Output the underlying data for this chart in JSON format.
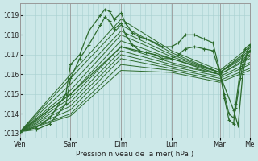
{
  "background_color": "#cce8e8",
  "grid_color": "#a8d0d0",
  "line_color": "#2d6b2d",
  "xlabel": "Pression niveau de la mer( hPa )",
  "ylim": [
    1012.8,
    1019.6
  ],
  "yticks": [
    1013,
    1014,
    1015,
    1016,
    1017,
    1018,
    1019
  ],
  "x_day_labels": [
    "Ven",
    "Sam",
    "Dim",
    "Lun",
    "Mar",
    "Me"
  ],
  "x_day_positions": [
    0,
    0.22,
    0.44,
    0.66,
    0.87,
    1.0
  ],
  "series": [
    {
      "points": [
        [
          0,
          1013.1
        ],
        [
          0.07,
          1013.3
        ],
        [
          0.13,
          1013.8
        ],
        [
          0.2,
          1015.0
        ],
        [
          0.22,
          1016.5
        ],
        [
          0.26,
          1017.0
        ],
        [
          0.3,
          1018.2
        ],
        [
          0.35,
          1019.0
        ],
        [
          0.37,
          1019.3
        ],
        [
          0.39,
          1019.2
        ],
        [
          0.41,
          1018.8
        ],
        [
          0.44,
          1019.1
        ],
        [
          0.46,
          1018.6
        ],
        [
          0.49,
          1018.1
        ],
        [
          0.52,
          1017.9
        ],
        [
          0.55,
          1017.8
        ],
        [
          0.59,
          1017.6
        ],
        [
          0.62,
          1017.4
        ],
        [
          0.66,
          1017.4
        ],
        [
          0.69,
          1017.6
        ],
        [
          0.72,
          1018.0
        ],
        [
          0.76,
          1018.0
        ],
        [
          0.8,
          1017.8
        ],
        [
          0.84,
          1017.6
        ],
        [
          0.87,
          1016.2
        ],
        [
          0.89,
          1014.8
        ],
        [
          0.91,
          1013.7
        ],
        [
          0.93,
          1013.5
        ],
        [
          0.94,
          1014.5
        ],
        [
          0.96,
          1016.3
        ],
        [
          0.97,
          1017.0
        ],
        [
          0.98,
          1017.3
        ],
        [
          0.99,
          1017.4
        ],
        [
          1.0,
          1017.5
        ]
      ],
      "marker": true
    },
    {
      "points": [
        [
          0,
          1013.1
        ],
        [
          0.07,
          1013.2
        ],
        [
          0.13,
          1013.5
        ],
        [
          0.2,
          1014.5
        ],
        [
          0.22,
          1015.8
        ],
        [
          0.26,
          1016.8
        ],
        [
          0.3,
          1017.5
        ],
        [
          0.35,
          1018.5
        ],
        [
          0.37,
          1018.9
        ],
        [
          0.39,
          1018.7
        ],
        [
          0.41,
          1018.3
        ],
        [
          0.44,
          1018.6
        ],
        [
          0.46,
          1018.0
        ],
        [
          0.49,
          1017.5
        ],
        [
          0.52,
          1017.2
        ],
        [
          0.55,
          1017.1
        ],
        [
          0.59,
          1017.0
        ],
        [
          0.62,
          1016.8
        ],
        [
          0.66,
          1016.8
        ],
        [
          0.69,
          1017.0
        ],
        [
          0.72,
          1017.3
        ],
        [
          0.76,
          1017.4
        ],
        [
          0.8,
          1017.3
        ],
        [
          0.84,
          1017.2
        ],
        [
          0.87,
          1016.1
        ],
        [
          0.89,
          1015.0
        ],
        [
          0.91,
          1014.0
        ],
        [
          0.93,
          1013.8
        ],
        [
          0.94,
          1014.3
        ],
        [
          0.96,
          1015.8
        ],
        [
          0.97,
          1016.5
        ],
        [
          0.98,
          1016.8
        ],
        [
          0.99,
          1017.0
        ],
        [
          1.0,
          1017.2
        ]
      ],
      "marker": true
    },
    {
      "points": [
        [
          0,
          1013.1
        ],
        [
          0.22,
          1016.0
        ],
        [
          0.44,
          1018.8
        ],
        [
          0.66,
          1017.2
        ],
        [
          0.87,
          1016.2
        ],
        [
          1.0,
          1017.4
        ]
      ],
      "marker": false
    },
    {
      "points": [
        [
          0,
          1013.1
        ],
        [
          0.22,
          1015.8
        ],
        [
          0.44,
          1018.5
        ],
        [
          0.66,
          1017.1
        ],
        [
          0.87,
          1016.1
        ],
        [
          1.0,
          1017.3
        ]
      ],
      "marker": false
    },
    {
      "points": [
        [
          0,
          1013.1
        ],
        [
          0.22,
          1015.5
        ],
        [
          0.44,
          1018.2
        ],
        [
          0.66,
          1017.0
        ],
        [
          0.87,
          1016.1
        ],
        [
          1.0,
          1017.2
        ]
      ],
      "marker": false
    },
    {
      "points": [
        [
          0,
          1013.1
        ],
        [
          0.22,
          1015.2
        ],
        [
          0.44,
          1018.0
        ],
        [
          0.66,
          1016.9
        ],
        [
          0.87,
          1016.1
        ],
        [
          1.0,
          1017.1
        ]
      ],
      "marker": false
    },
    {
      "points": [
        [
          0,
          1013.1
        ],
        [
          0.22,
          1015.0
        ],
        [
          0.44,
          1017.7
        ],
        [
          0.66,
          1016.8
        ],
        [
          0.87,
          1016.1
        ],
        [
          1.0,
          1017.0
        ]
      ],
      "marker": false
    },
    {
      "points": [
        [
          0,
          1013.1
        ],
        [
          0.22,
          1014.8
        ],
        [
          0.44,
          1017.4
        ],
        [
          0.66,
          1016.6
        ],
        [
          0.87,
          1016.0
        ],
        [
          1.0,
          1016.9
        ]
      ],
      "marker": false
    },
    {
      "points": [
        [
          0,
          1013.1
        ],
        [
          0.22,
          1014.6
        ],
        [
          0.44,
          1017.2
        ],
        [
          0.66,
          1016.5
        ],
        [
          0.87,
          1016.0
        ],
        [
          1.0,
          1016.8
        ]
      ],
      "marker": false
    },
    {
      "points": [
        [
          0,
          1013.1
        ],
        [
          0.22,
          1014.4
        ],
        [
          0.44,
          1017.0
        ],
        [
          0.66,
          1016.4
        ],
        [
          0.87,
          1015.9
        ],
        [
          1.0,
          1016.6
        ]
      ],
      "marker": false
    },
    {
      "points": [
        [
          0,
          1013.1
        ],
        [
          0.22,
          1014.2
        ],
        [
          0.44,
          1016.8
        ],
        [
          0.66,
          1016.3
        ],
        [
          0.87,
          1015.8
        ],
        [
          1.0,
          1016.5
        ]
      ],
      "marker": false
    },
    {
      "points": [
        [
          0,
          1013.1
        ],
        [
          0.22,
          1014.0
        ],
        [
          0.44,
          1016.5
        ],
        [
          0.66,
          1016.2
        ],
        [
          0.87,
          1015.7
        ],
        [
          1.0,
          1016.3
        ]
      ],
      "marker": false
    },
    {
      "points": [
        [
          0,
          1013.1
        ],
        [
          0.22,
          1013.9
        ],
        [
          0.44,
          1016.2
        ],
        [
          0.66,
          1016.1
        ],
        [
          0.87,
          1015.6
        ],
        [
          1.0,
          1016.2
        ]
      ],
      "marker": false
    },
    {
      "points": [
        [
          0,
          1013.1
        ],
        [
          0.22,
          1015.0
        ],
        [
          0.44,
          1017.4
        ],
        [
          0.66,
          1016.8
        ],
        [
          0.87,
          1016.0
        ],
        [
          0.93,
          1014.2
        ],
        [
          0.95,
          1013.4
        ],
        [
          0.97,
          1016.0
        ],
        [
          0.99,
          1017.2
        ],
        [
          1.0,
          1017.4
        ]
      ],
      "marker": true
    }
  ]
}
